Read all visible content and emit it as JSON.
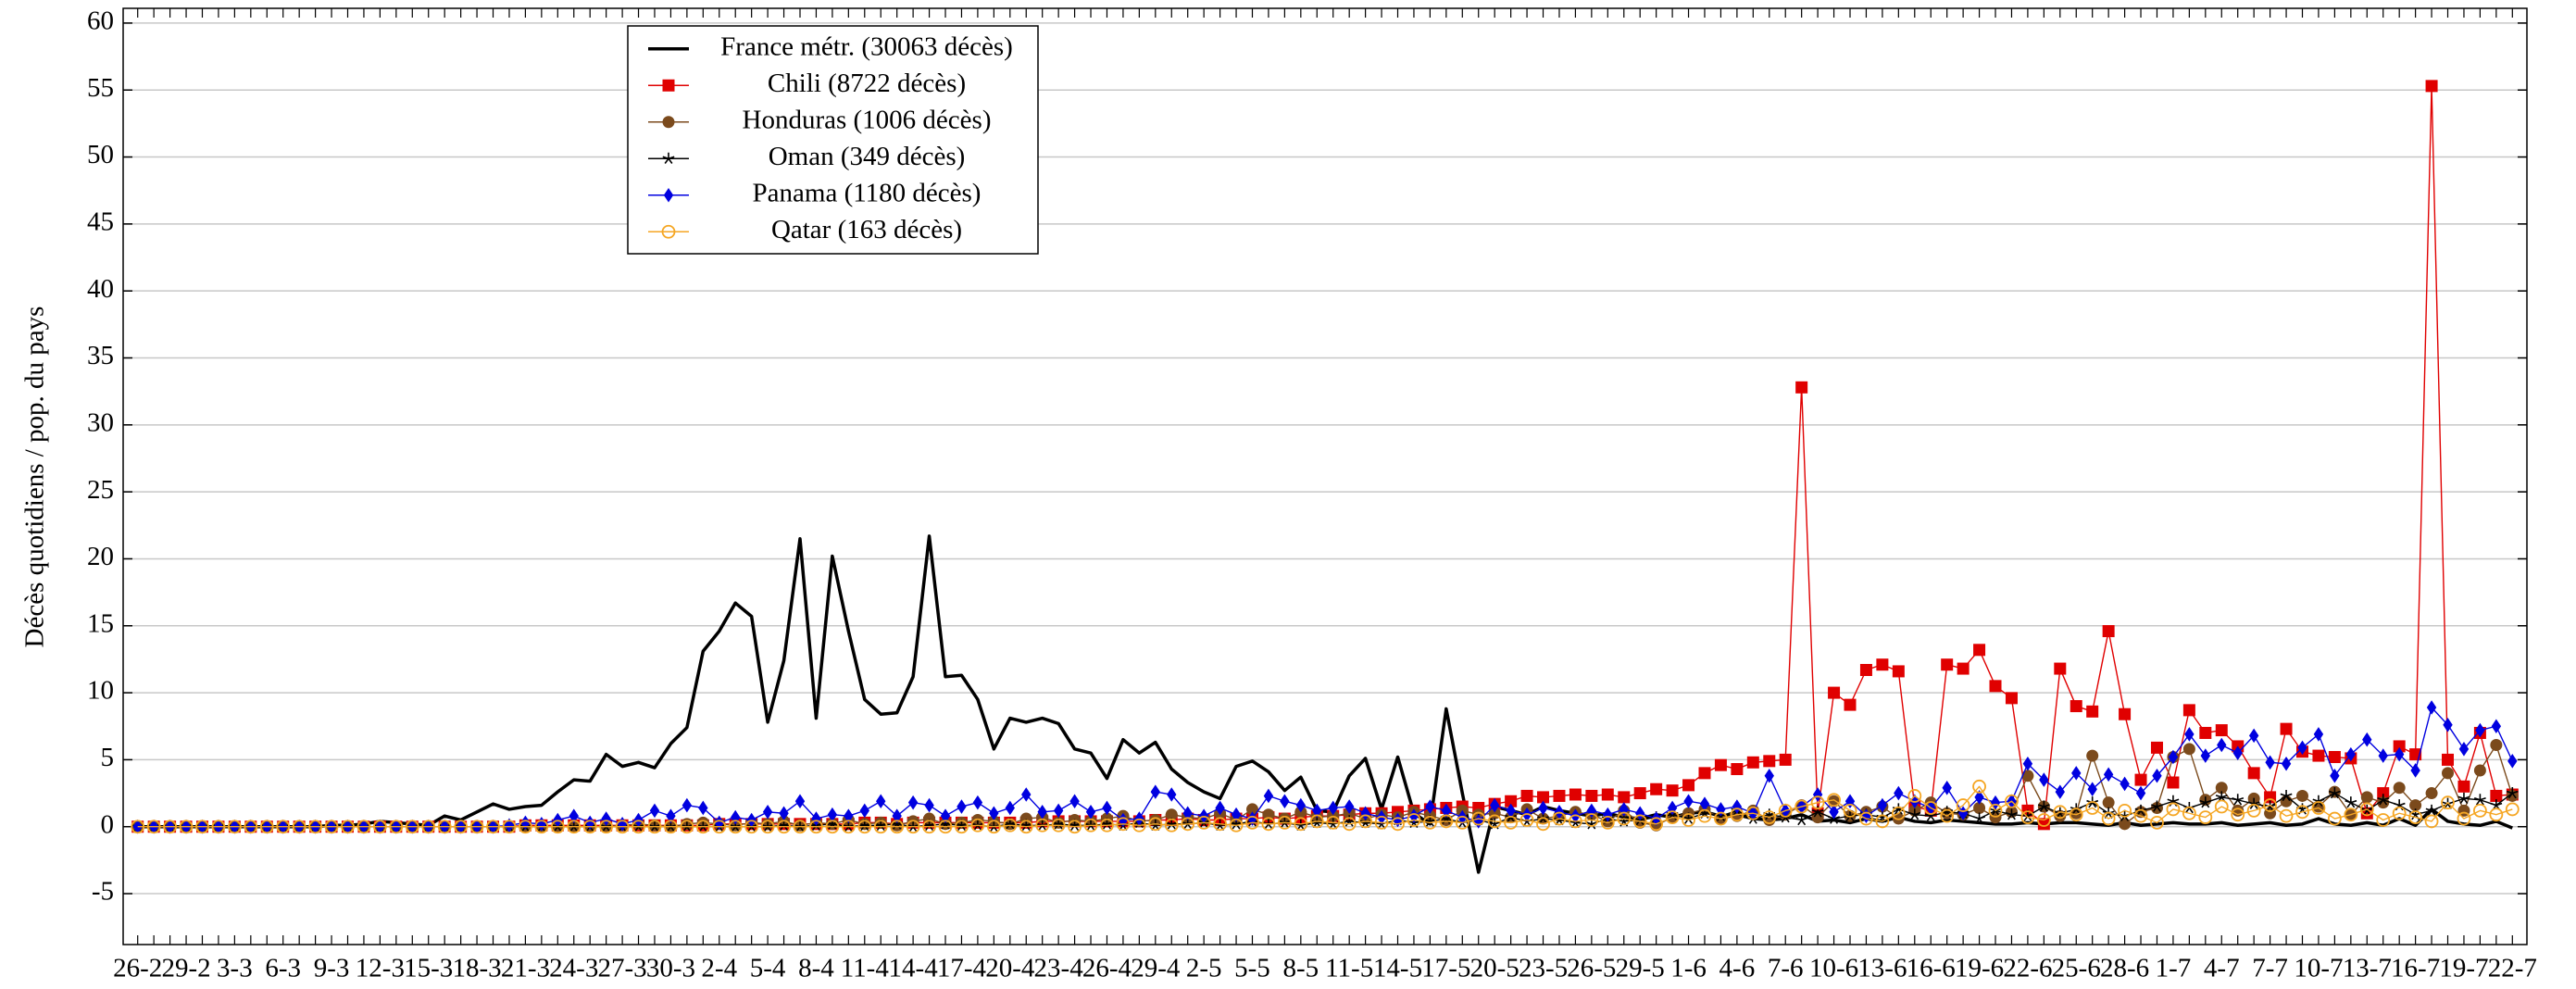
{
  "chart_data": {
    "type": "line",
    "ylabel": "Décès quotidiens / pop. du pays",
    "ylim": [
      -8.8,
      61.1
    ],
    "yticks": [
      -5,
      0,
      5,
      10,
      15,
      20,
      25,
      30,
      35,
      40,
      45,
      50,
      55,
      60
    ],
    "grid": true,
    "legend": "top-left",
    "categories": [
      "26-2",
      null,
      null,
      "29-2",
      null,
      null,
      "3-3",
      null,
      null,
      "6-3",
      null,
      null,
      "9-3",
      null,
      null,
      "12-3",
      null,
      null,
      "15-3",
      null,
      null,
      "18-3",
      null,
      null,
      "21-3",
      null,
      null,
      "24-3",
      null,
      null,
      "27-3",
      null,
      null,
      "30-3",
      null,
      null,
      "2-4",
      null,
      null,
      "5-4",
      null,
      null,
      "8-4",
      null,
      null,
      "11-4",
      null,
      null,
      "14-4",
      null,
      null,
      "17-4",
      null,
      null,
      "20-4",
      null,
      null,
      "23-4",
      null,
      null,
      "26-4",
      null,
      null,
      "29-4",
      null,
      null,
      "2-5",
      null,
      null,
      "5-5",
      null,
      null,
      "8-5",
      null,
      null,
      "11-5",
      null,
      null,
      "14-5",
      null,
      null,
      "17-5",
      null,
      null,
      "20-5",
      null,
      null,
      "23-5",
      null,
      null,
      "26-5",
      null,
      null,
      "29-5",
      null,
      null,
      "1-6",
      null,
      null,
      "4-6",
      null,
      null,
      "7-6",
      null,
      null,
      "10-6",
      null,
      null,
      "13-6",
      null,
      null,
      "16-6",
      null,
      null,
      "19-6",
      null,
      null,
      "22-6",
      null,
      null,
      "25-6",
      null,
      null,
      "28-6",
      null,
      null,
      "1-7",
      null,
      null,
      "4-7",
      null,
      null,
      "7-7",
      null,
      null,
      "10-7",
      null,
      null,
      "13-7",
      null,
      null,
      "16-7",
      null,
      null,
      "19-7",
      null,
      null,
      "22-7"
    ],
    "series": [
      {
        "name": "France métr. (30063 décès)",
        "color": "#000000",
        "marker": "none",
        "values": [
          0,
          0,
          0,
          0,
          0,
          0,
          0,
          0,
          0,
          0,
          0,
          0,
          0.1,
          0.1,
          0.2,
          0.4,
          0.3,
          0.2,
          0.1,
          0.8,
          0.5,
          1.1,
          1.7,
          1.3,
          1.5,
          1.6,
          2.6,
          3.5,
          3.4,
          5.4,
          4.5,
          4.8,
          4.4,
          6.2,
          7.4,
          13.1,
          14.6,
          16.7,
          15.7,
          7.8,
          12.4,
          21.5,
          8.1,
          20.2,
          14.6,
          9.5,
          8.4,
          8.5,
          11.2,
          21.7,
          11.2,
          11.3,
          9.5,
          5.8,
          8.1,
          7.8,
          8.1,
          7.7,
          5.8,
          5.5,
          3.6,
          6.5,
          5.5,
          6.3,
          4.3,
          3.3,
          2.6,
          2.1,
          4.5,
          4.9,
          4.1,
          2.7,
          3.7,
          1.2,
          1.1,
          3.8,
          5.1,
          1.3,
          5.2,
          1.0,
          0.2,
          8.8,
          2.5,
          -3.4,
          1.5,
          1.2,
          0.9,
          1.5,
          1.2,
          1.0,
          0.8,
          1.0,
          0.7,
          0.6,
          0.9,
          0.7,
          1.0,
          1.1,
          0.8,
          0.9,
          0.6,
          0.5,
          0.6,
          0.9,
          0.4,
          0.5,
          0.3,
          0.6,
          0.4,
          0.7,
          0.4,
          0.3,
          0.5,
          0.4,
          0.3,
          0.2,
          0.2,
          0.3,
          0.2,
          0.3,
          0.3,
          0.2,
          0.1,
          0.3,
          0.1,
          0.2,
          0.3,
          0.2,
          0.2,
          0.3,
          0.1,
          0.2,
          0.3,
          0.1,
          0.2,
          0.6,
          0.2,
          0.1,
          0.3,
          0.1,
          0.6,
          0.1,
          1.3,
          0.4,
          0.2,
          0.1,
          0.4,
          -0.1
        ]
      },
      {
        "name": "Chili (8722 décès)",
        "color": "#e00000",
        "marker": "square",
        "values": [
          0,
          0,
          0,
          0,
          0,
          0,
          0,
          0,
          0,
          0,
          0,
          0,
          0,
          0,
          0,
          0,
          0,
          0,
          0,
          0,
          0,
          0,
          0,
          0,
          0.1,
          0.1,
          0.1,
          0.1,
          0.1,
          0.1,
          0.1,
          0.1,
          0.1,
          0.1,
          0.1,
          0.1,
          0.2,
          0.2,
          0.2,
          0.2,
          0.2,
          0.2,
          0.2,
          0.2,
          0.2,
          0.3,
          0.3,
          0.2,
          0.3,
          0.3,
          0.3,
          0.3,
          0.3,
          0.3,
          0.3,
          0.3,
          0.4,
          0.4,
          0.4,
          0.4,
          0.4,
          0.4,
          0.4,
          0.5,
          0.5,
          0.6,
          0.5,
          0.5,
          0.6,
          0.6,
          0.7,
          0.6,
          0.7,
          0.8,
          0.8,
          0.9,
          1.0,
          1.0,
          1.1,
          1.2,
          1.3,
          1.4,
          1.5,
          1.4,
          1.7,
          1.9,
          2.3,
          2.2,
          2.3,
          2.4,
          2.3,
          2.4,
          2.2,
          2.5,
          2.8,
          2.7,
          3.1,
          4.0,
          4.6,
          4.3,
          4.8,
          4.9,
          5.0,
          32.8,
          1.0,
          10.0,
          9.1,
          11.7,
          12.1,
          11.6,
          1.5,
          1.2,
          12.1,
          11.8,
          13.2,
          10.5,
          9.6,
          1.2,
          0.2,
          11.8,
          9.0,
          8.6,
          14.6,
          8.4,
          3.5,
          5.9,
          3.3,
          8.7,
          7.0,
          7.2,
          6.0,
          4.0,
          2.2,
          7.3,
          5.6,
          5.3,
          5.2,
          5.1,
          1.0,
          2.5,
          6.0,
          5.4,
          55.3,
          5.0,
          3.0,
          7.0,
          2.3,
          2.4
        ]
      },
      {
        "name": "Honduras (1006 décès)",
        "color": "#7b4a1c",
        "marker": "circle",
        "values": [
          0,
          0,
          0,
          0,
          0,
          0,
          0,
          0,
          0,
          0,
          0,
          0,
          0,
          0,
          0,
          0,
          0,
          0,
          0,
          0,
          0,
          0,
          0,
          0,
          0,
          0,
          0,
          0,
          0,
          0,
          0.1,
          0.2,
          0.1,
          0,
          0.2,
          0.3,
          0.2,
          0.1,
          0.3,
          0.2,
          0.4,
          0.1,
          0.3,
          0.2,
          0.5,
          0.2,
          0.3,
          0.1,
          0.4,
          0.6,
          0.2,
          0.3,
          0.5,
          0.4,
          0.2,
          0.6,
          0.7,
          0.3,
          0.5,
          0.4,
          0.6,
          0.8,
          0.4,
          0.5,
          0.9,
          0.7,
          0.6,
          1.0,
          0.5,
          1.3,
          0.9,
          0.6,
          1.1,
          0.7,
          0.8,
          1.0,
          0.6,
          0.9,
          0.7,
          1.1,
          0.8,
          0.5,
          1.2,
          0.9,
          1.0,
          0.7,
          1.3,
          0.6,
          0.8,
          1.1,
          0.9,
          0.4,
          1.2,
          0.3,
          0.1,
          0.7,
          1.0,
          1.3,
          0.6,
          0.8,
          1.2,
          0.5,
          0.9,
          1.6,
          0.7,
          1.9,
          0.8,
          1.1,
          1.5,
          0.6,
          1.2,
          1.8,
          1.0,
          0.9,
          1.4,
          0.7,
          1.1,
          3.8,
          1.5,
          0.8,
          1.0,
          5.3,
          1.8,
          0.2,
          1.1,
          1.4,
          5.2,
          5.8,
          2.0,
          2.9,
          1.2,
          2.1,
          1.0,
          1.9,
          2.3,
          1.5,
          2.6,
          0.9,
          2.2,
          1.8,
          2.9,
          1.6,
          2.5,
          4.0,
          1.2,
          4.2,
          6.1,
          2.3
        ]
      },
      {
        "name": "Oman (349 décès)",
        "color": "#000000",
        "marker": "star",
        "values": [
          0,
          0,
          0,
          0,
          0,
          0,
          0,
          0,
          0,
          0,
          0,
          0,
          0,
          0,
          0,
          0,
          0,
          0,
          0,
          0,
          0,
          0,
          0,
          0,
          0,
          0,
          0,
          0,
          0,
          0,
          0,
          0,
          0,
          0,
          0,
          0,
          0,
          0,
          0,
          0,
          0.1,
          0,
          0.1,
          0.2,
          0,
          0.1,
          0.1,
          0.2,
          0,
          0.1,
          0.2,
          0.1,
          0.1,
          0,
          0.2,
          0.1,
          0.1,
          0.2,
          0.1,
          0.1,
          0.2,
          0.1,
          0.3,
          0.1,
          0.2,
          0.2,
          0.3,
          0.1,
          0.2,
          0.4,
          0.2,
          0.3,
          0.1,
          0.3,
          0.2,
          0.4,
          0.3,
          0.2,
          0.5,
          0.3,
          0.4,
          0.6,
          0.3,
          0.5,
          0.2,
          0.7,
          0.4,
          0.6,
          0.5,
          0.3,
          0.2,
          0.6,
          0.4,
          0.5,
          0.7,
          0.9,
          0.6,
          1.0,
          0.8,
          1.2,
          0.6,
          0.9,
          0.7,
          0.5,
          1.1,
          0.6,
          0.8,
          0.9,
          0.7,
          1.3,
          0.9,
          0.8,
          1.1,
          1.0,
          0.6,
          1.2,
          0.9,
          0.8,
          1.5,
          1.0,
          1.3,
          1.8,
          1.0,
          0.8,
          1.2,
          1.5,
          1.9,
          1.4,
          1.8,
          2.2,
          2.0,
          1.7,
          1.5,
          2.3,
          1.3,
          1.9,
          2.5,
          1.8,
          1.2,
          2.0,
          1.6,
          0.9,
          1.2,
          1.7,
          2.1,
          2.0,
          1.6,
          2.5
        ]
      },
      {
        "name": "Panama (1180 décès)",
        "color": "#0000e0",
        "marker": "diamond",
        "values": [
          0,
          0,
          0,
          0,
          0,
          0,
          0,
          0,
          0,
          0,
          0,
          0,
          0,
          0,
          0,
          0,
          0,
          0,
          0,
          0,
          0,
          0,
          0,
          0.1,
          0.3,
          0.2,
          0.5,
          0.8,
          0.3,
          0.6,
          0.2,
          0.5,
          1.2,
          0.8,
          1.6,
          1.4,
          0.3,
          0.7,
          0.5,
          1.1,
          1.0,
          1.9,
          0.6,
          0.9,
          0.8,
          1.2,
          1.9,
          0.8,
          1.8,
          1.6,
          0.8,
          1.5,
          1.8,
          1.0,
          1.4,
          2.4,
          1.1,
          1.2,
          1.9,
          1.1,
          1.4,
          0.5,
          0.6,
          2.6,
          2.4,
          1.0,
          0.8,
          1.4,
          0.9,
          0.6,
          2.3,
          1.9,
          1.6,
          1.2,
          1.4,
          1.5,
          1.0,
          0.7,
          0.5,
          0.8,
          1.5,
          1.2,
          0.7,
          0.4,
          1.6,
          1.2,
          0.9,
          1.4,
          1.1,
          0.8,
          1.2,
          0.9,
          1.3,
          1.0,
          0.6,
          1.4,
          1.9,
          1.7,
          1.3,
          1.5,
          1.0,
          3.8,
          1.2,
          1.5,
          2.4,
          1.1,
          1.9,
          0.8,
          1.6,
          2.5,
          1.9,
          1.4,
          2.9,
          1.0,
          2.2,
          1.8,
          1.9,
          4.7,
          3.5,
          2.6,
          4.0,
          2.8,
          3.9,
          3.2,
          2.5,
          3.8,
          5.2,
          6.9,
          5.3,
          6.1,
          5.5,
          6.8,
          4.8,
          4.7,
          5.9,
          6.9,
          3.8,
          5.4,
          6.5,
          5.3,
          5.4,
          4.2,
          8.9,
          7.6,
          5.8,
          7.2,
          7.5,
          4.9
        ]
      },
      {
        "name": "Qatar (163 décès)",
        "color": "#f5a623",
        "marker": "circle-open",
        "values": [
          0,
          0,
          0,
          0,
          0,
          0,
          0,
          0,
          0,
          0,
          0,
          0,
          0,
          0,
          0,
          0,
          0,
          0,
          0,
          0,
          0,
          0,
          0,
          0,
          0,
          0,
          0,
          0,
          0,
          0,
          0,
          0,
          0,
          0,
          0,
          0,
          0,
          0,
          0,
          0,
          0,
          0,
          0,
          0,
          0,
          0,
          0,
          0,
          0,
          0,
          0,
          0,
          0.1,
          0,
          0.1,
          0,
          0.1,
          0.1,
          0,
          0.1,
          0.1,
          0.2,
          0.1,
          0.2,
          0.1,
          0.2,
          0.3,
          0.2,
          0.1,
          0.3,
          0.2,
          0.3,
          0.2,
          0.4,
          0.3,
          0.2,
          0.4,
          0.3,
          0.2,
          0.5,
          0.3,
          0.4,
          0.3,
          0.6,
          0.4,
          0.3,
          0.5,
          0.2,
          0.6,
          0.4,
          0.5,
          0.3,
          0.6,
          0.4,
          0.2,
          0.7,
          0.5,
          0.8,
          0.6,
          0.9,
          1.0,
          0.7,
          1.2,
          1.5,
          1.8,
          2.0,
          1.2,
          0.6,
          0.4,
          1.0,
          2.3,
          1.4,
          0.8,
          1.6,
          3.0,
          1.2,
          1.9,
          0.7,
          0.5,
          1.1,
          0.9,
          1.4,
          0.6,
          1.2,
          0.8,
          0.3,
          1.3,
          1.0,
          0.7,
          1.5,
          0.9,
          1.2,
          1.6,
          0.8,
          1.1,
          1.4,
          0.6,
          0.9,
          1.3,
          0.5,
          1.0,
          0.7,
          0.4,
          1.8,
          0.6,
          1.2,
          0.9,
          1.3
        ]
      }
    ]
  }
}
